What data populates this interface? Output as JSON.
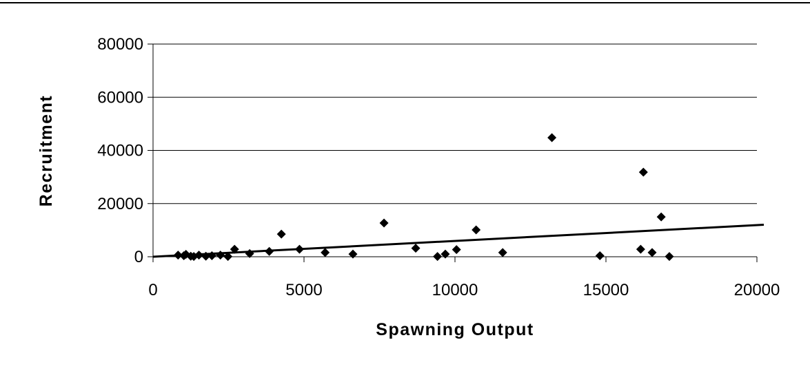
{
  "chart_data": {
    "type": "scatter",
    "xlabel": "Spawning Output",
    "ylabel": "Recruitment",
    "xlim": [
      0,
      20000
    ],
    "ylim": [
      0,
      80000
    ],
    "x_ticks": [
      "0",
      "5000",
      "10000",
      "15000",
      "20000"
    ],
    "y_ticks": [
      "0",
      "20000",
      "40000",
      "60000",
      "80000"
    ],
    "grid": "horizontal",
    "legend": "none",
    "marker_color": "#000000",
    "series": [
      {
        "marker": "diamond",
        "points": [
          [
            830,
            600
          ],
          [
            1020,
            400
          ],
          [
            1090,
            900
          ],
          [
            1250,
            200
          ],
          [
            1350,
            100
          ],
          [
            1520,
            600
          ],
          [
            1750,
            200
          ],
          [
            1950,
            400
          ],
          [
            2230,
            600
          ],
          [
            2480,
            100
          ],
          [
            2700,
            2800
          ],
          [
            3200,
            1200
          ],
          [
            3850,
            2000
          ],
          [
            4250,
            8500
          ],
          [
            4850,
            2800
          ],
          [
            5700,
            1600
          ],
          [
            6620,
            1000
          ],
          [
            7650,
            12700
          ],
          [
            8700,
            3200
          ],
          [
            9420,
            100
          ],
          [
            9680,
            1000
          ],
          [
            10050,
            2700
          ],
          [
            10700,
            10100
          ],
          [
            11580,
            1600
          ],
          [
            13210,
            44800
          ],
          [
            14800,
            400
          ],
          [
            16150,
            2800
          ],
          [
            16240,
            31800
          ],
          [
            16530,
            1600
          ],
          [
            16830,
            15000
          ],
          [
            17100,
            100
          ]
        ]
      }
    ],
    "trendline": {
      "type": "linear",
      "x": [
        0,
        20000
      ],
      "y": [
        0,
        11900
      ]
    }
  }
}
